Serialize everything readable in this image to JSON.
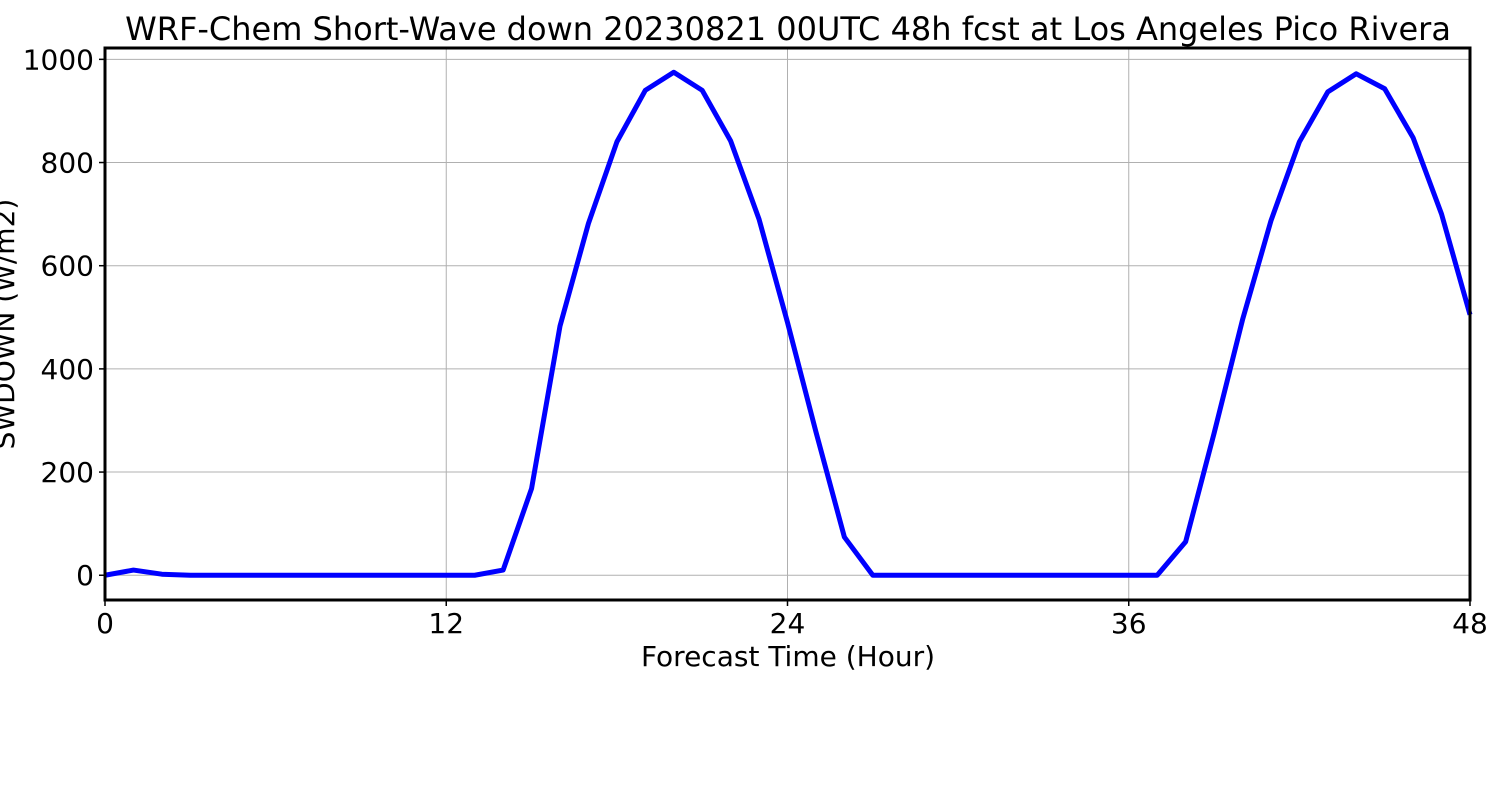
{
  "chart_data": {
    "type": "line",
    "title": "WRF-Chem Short-Wave down  20230821 00UTC 48h fcst at Los Angeles Pico Rivera",
    "xlabel": "Forecast Time (Hour)",
    "ylabel": "SWDOWN  (W/m2)",
    "xlim": [
      0,
      48
    ],
    "ylim": [
      -48,
      1022
    ],
    "xticks": [
      0,
      12,
      24,
      36,
      48
    ],
    "yticks": [
      0,
      200,
      400,
      600,
      800,
      1000
    ],
    "xtick_labels": [
      "0",
      "12",
      "24",
      "36",
      "48"
    ],
    "ytick_labels": [
      "0",
      "200",
      "400",
      "600",
      "800",
      "1000"
    ],
    "grid": true,
    "series": [
      {
        "color": "#0000ff",
        "x": [
          0,
          1,
          2,
          3,
          4,
          5,
          6,
          7,
          8,
          9,
          10,
          11,
          12,
          13,
          14,
          15,
          16,
          17,
          18,
          19,
          20,
          21,
          22,
          23,
          24,
          25,
          26,
          27,
          28,
          29,
          30,
          31,
          32,
          33,
          34,
          35,
          36,
          37,
          38,
          39,
          40,
          41,
          42,
          43,
          44,
          45,
          46,
          47,
          48
        ],
        "y": [
          0,
          10,
          2,
          0,
          0,
          0,
          0,
          0,
          0,
          0,
          0,
          0,
          0,
          0,
          10,
          168,
          483,
          682,
          840,
          940,
          975,
          940,
          842,
          690,
          490,
          278,
          74,
          0,
          0,
          0,
          0,
          0,
          0,
          0,
          0,
          0,
          0,
          0,
          65,
          275,
          495,
          687,
          840,
          937,
          972,
          943,
          848,
          700,
          505
        ]
      }
    ]
  }
}
